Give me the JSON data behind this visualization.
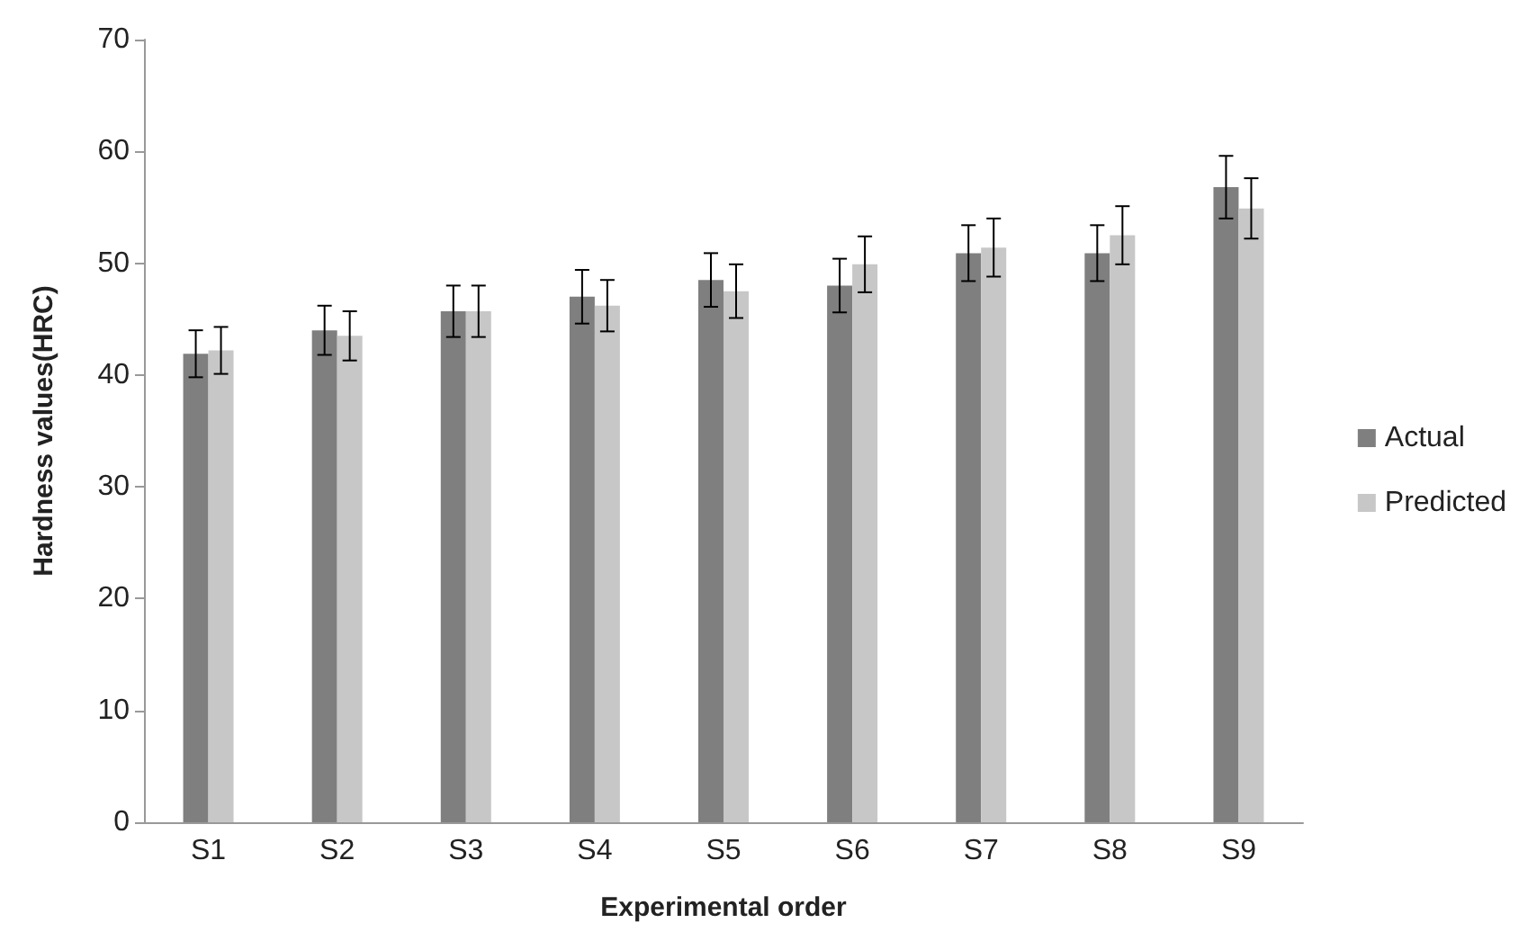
{
  "chart_data": {
    "type": "bar",
    "xlabel": "Experimental order",
    "ylabel": "Hardness values(HRC)",
    "categories": [
      "S1",
      "S2",
      "S3",
      "S4",
      "S5",
      "S6",
      "S7",
      "S8",
      "S9"
    ],
    "series": [
      {
        "name": "Actual",
        "color": "#7f7f7f",
        "values": [
          41.9,
          44.0,
          45.7,
          47.0,
          48.5,
          48.0,
          50.9,
          50.9,
          56.8
        ],
        "errors": [
          2.1,
          2.2,
          2.3,
          2.4,
          2.4,
          2.4,
          2.5,
          2.5,
          2.8
        ]
      },
      {
        "name": "Predicted",
        "color": "#c6c7c6",
        "values": [
          42.2,
          43.5,
          45.7,
          46.2,
          47.5,
          49.9,
          51.4,
          52.5,
          54.9
        ],
        "errors": [
          2.1,
          2.2,
          2.3,
          2.3,
          2.4,
          2.5,
          2.6,
          2.6,
          2.7
        ]
      }
    ],
    "ylim": [
      0,
      70
    ],
    "yticks": [
      0,
      10,
      20,
      30,
      40,
      50,
      60,
      70
    ],
    "grid": false,
    "legend": "right"
  }
}
